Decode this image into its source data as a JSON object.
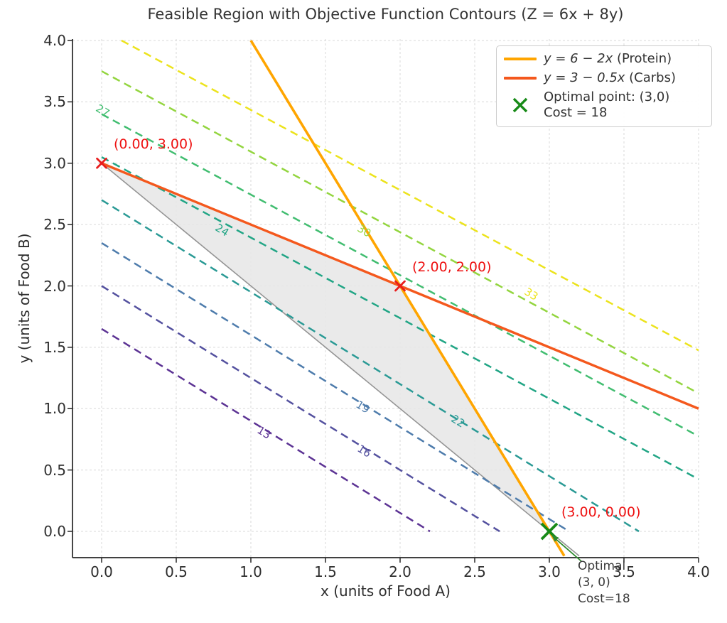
{
  "title": "Feasible Region with Objective Function Contours (Z = 6x + 8y)",
  "axes": {
    "xlabel": "x (units of Food A)",
    "ylabel": "y (units of Food B)",
    "xticks": [
      0,
      0.5,
      1,
      1.5,
      2,
      2.5,
      3,
      3.5,
      4
    ],
    "yticks": [
      0,
      0.5,
      1,
      1.5,
      2,
      2.5,
      3,
      3.5,
      4
    ],
    "xtick_labels": [
      "0.0",
      "0.5",
      "1.0",
      "1.5",
      "2.0",
      "2.5",
      "3.0",
      "3.5",
      "4.0"
    ],
    "ytick_labels": [
      "0.0",
      "0.5",
      "1.0",
      "1.5",
      "2.0",
      "2.5",
      "3.0",
      "3.5",
      "4.0"
    ]
  },
  "legend": {
    "entries": [
      {
        "type": "line",
        "color": "#ffa500",
        "formula": "y = 6 − 2x",
        "note": " (Protein)"
      },
      {
        "type": "line",
        "color": "#f4581d",
        "formula": "y = 3 − 0.5x",
        "note": " (Carbs)"
      },
      {
        "type": "marker",
        "color": "#178a17",
        "line1": "Optimal point: (3,0)",
        "line2": "Cost = 18"
      }
    ]
  },
  "optimal_annotation": [
    "Optimal",
    "(3, 0)",
    "Cost=18"
  ],
  "colors": {
    "protein_line": "#ffa500",
    "carbs_line": "#f4581d",
    "boundary_line": "#949494",
    "region_fill": "#e6e6e6",
    "corner_marker": "#e81c1c",
    "corner_text": "#ee1111",
    "optimal_marker": "#178a17",
    "arrow": "#2e8b2e",
    "grid": "#e0e0e0",
    "spine": "#262626"
  },
  "chart_data": {
    "type": "line",
    "title": "Feasible Region with Objective Function Contours (Z = 6x + 8y)",
    "xlabel": "x (units of Food A)",
    "ylabel": "y (units of Food B)",
    "xlim": [
      -0.2,
      4.0
    ],
    "ylim": [
      -0.2,
      4.0
    ],
    "grid": true,
    "legend_position": "upper right",
    "objective_function": "Z = 6x + 8y",
    "constraint_lines": [
      {
        "label": "y = 6 − 2x (Protein)",
        "color": "#ffa500",
        "width": 3.6,
        "points": [
          [
            1.0,
            4.0
          ],
          [
            3.1,
            -0.2
          ]
        ]
      },
      {
        "label": "y = 3 − 0.5x (Carbs)",
        "color": "#f4581d",
        "width": 3.4,
        "points": [
          [
            0.0,
            3.0
          ],
          [
            4.0,
            1.0
          ]
        ]
      },
      {
        "label": "gray feasible boundary",
        "color": "#949494",
        "width": 1.6,
        "points": [
          [
            0.0,
            3.0
          ],
          [
            3.2,
            -0.2
          ]
        ]
      }
    ],
    "feasible_region": {
      "vertices": [
        [
          0,
          3
        ],
        [
          2,
          2
        ],
        [
          3,
          0
        ]
      ],
      "fill": "#e6e6e6",
      "opacity": 0.85
    },
    "contours": {
      "style": "dashed",
      "lines": [
        {
          "label": "13",
          "color": "#5c3394",
          "points": [
            [
              0,
              1.65
            ],
            [
              2.2,
              0
            ]
          ],
          "label_pos": [
            1.1,
            0.8
          ]
        },
        {
          "label": "16",
          "color": "#54519f",
          "points": [
            [
              0,
              2.0
            ],
            [
              2.667,
              0
            ]
          ],
          "label_pos": [
            1.77,
            0.65
          ]
        },
        {
          "label": "19",
          "color": "#4e7cac",
          "points": [
            [
              0,
              2.35
            ],
            [
              3.133,
              0
            ]
          ],
          "label_pos": [
            1.76,
            1.01
          ]
        },
        {
          "label": "22",
          "color": "#2a9a95",
          "points": [
            [
              0,
              2.7
            ],
            [
              3.6,
              0
            ]
          ],
          "label_pos": [
            2.4,
            0.89
          ]
        },
        {
          "label": "24",
          "color": "#21a585",
          "points": [
            [
              0,
              3.05
            ],
            [
              4,
              0.425
            ]
          ],
          "label_pos": [
            0.82,
            2.45
          ]
        },
        {
          "label": "27",
          "color": "#41bd70",
          "points": [
            [
              0,
              3.4
            ],
            [
              4,
              0.775
            ]
          ],
          "label_pos": [
            0.02,
            3.42
          ]
        },
        {
          "label": "30",
          "color": "#93d53f",
          "points": [
            [
              0,
              3.75
            ],
            [
              4,
              1.125
            ]
          ],
          "label_pos": [
            1.77,
            2.44
          ]
        },
        {
          "label": "33",
          "color": "#ece31d",
          "points": [
            [
              0.133,
              4
            ],
            [
              4,
              1.475
            ]
          ],
          "label_pos": [
            2.89,
            1.93
          ]
        }
      ]
    },
    "corner_points": [
      {
        "xy": [
          0,
          3
        ],
        "label": "(0.00, 3.00)"
      },
      {
        "xy": [
          2,
          2
        ],
        "label": "(2.00, 2.00)"
      },
      {
        "xy": [
          3,
          0
        ],
        "label": "(3.00, 0.00)"
      }
    ],
    "optimal_point": {
      "xy": [
        3,
        0
      ],
      "cost": 18,
      "annotation": [
        "Optimal",
        "(3, 0)",
        "Cost=18"
      ]
    }
  }
}
